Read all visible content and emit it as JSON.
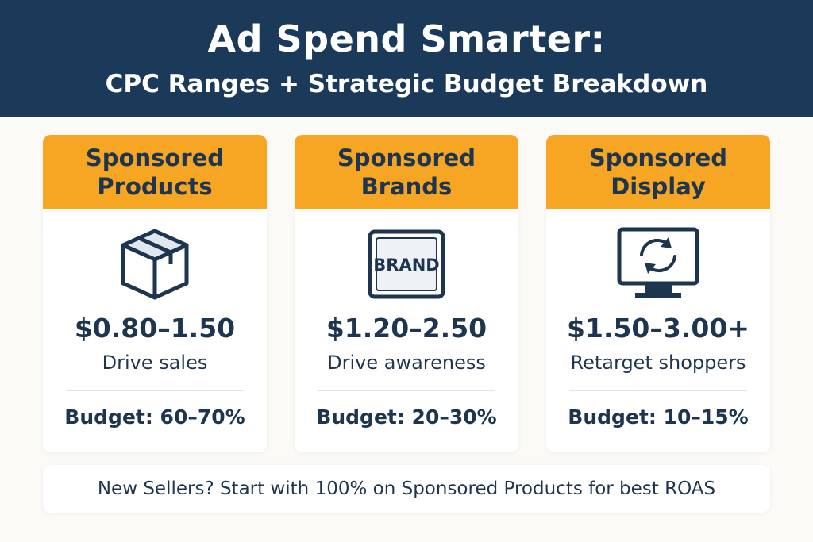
{
  "header": {
    "title": "Ad Spend Smarter:",
    "subtitle": "CPC Ranges + Strategic Budget Breakdown"
  },
  "colors": {
    "header_bg": "#1b3a5a",
    "accent": "#f6a623",
    "text": "#1e3550"
  },
  "cards": [
    {
      "name_line1": "Sponsored",
      "name_line2": "Products",
      "icon": "box-icon",
      "cpc": "$0.80–1.50",
      "goal": "Drive sales",
      "budget": "Budget: 60–70%"
    },
    {
      "name_line1": "Sponsored",
      "name_line2": "Brands",
      "icon": "brand-icon",
      "icon_text": "BRAND",
      "cpc": "$1.20–2.50",
      "goal": "Drive awareness",
      "budget": "Budget: 20–30%"
    },
    {
      "name_line1": "Sponsored",
      "name_line2": "Display",
      "icon": "retarget-monitor-icon",
      "cpc": "$1.50–3.00+",
      "goal": "Retarget shoppers",
      "budget": "Budget: 10–15%"
    }
  ],
  "footer": {
    "tip": "New Sellers? Start with 100% on Sponsored Products for best ROAS"
  }
}
